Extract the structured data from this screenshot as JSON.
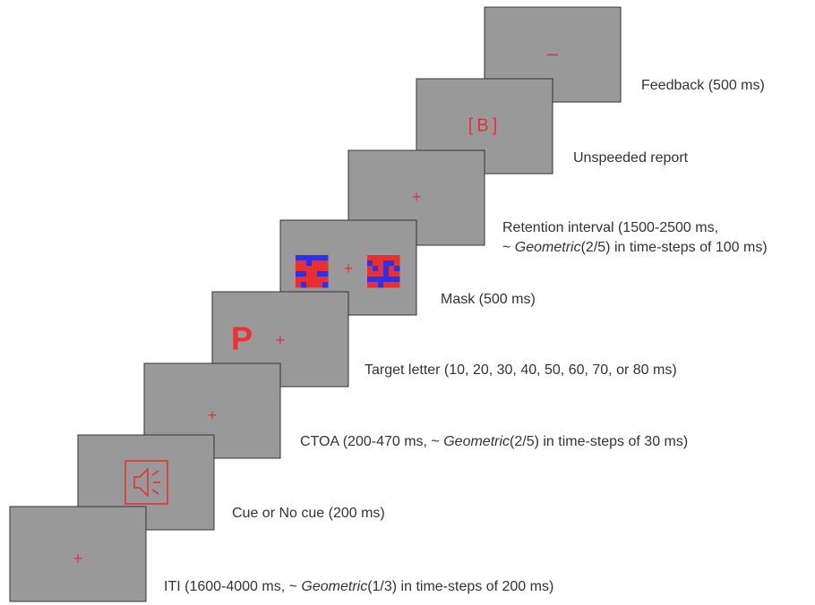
{
  "panels": [
    {
      "stimuli": [
        "–"
      ],
      "caption": [
        [
          {
            "text": "Feedback (500 ms)"
          }
        ]
      ]
    },
    {
      "stimuli": [
        "[B]"
      ],
      "caption": [
        [
          {
            "text": "Unspeeded report"
          }
        ]
      ]
    },
    {
      "stimuli": [
        "+"
      ],
      "caption": [
        [
          {
            "text": "Retention interval (1500-2500 ms,"
          }
        ],
        [
          {
            "text": "~ "
          },
          {
            "text": "Geometric",
            "italic": true
          },
          {
            "text": "(2/5) in time-steps of 100 ms)"
          }
        ]
      ]
    },
    {
      "stimuli": [
        "+"
      ],
      "caption": [
        [
          {
            "text": "Mask (500 ms)"
          }
        ]
      ]
    },
    {
      "stimuli": [
        "P",
        "+"
      ],
      "caption": [
        [
          {
            "text": "Target letter (10, 20, 30, 40, 50, 60, 70, or 80 ms)"
          }
        ]
      ]
    },
    {
      "stimuli": [
        "+"
      ],
      "caption": [
        [
          {
            "text": "CTOA (200-470 ms, ~ "
          },
          {
            "text": "Geometric",
            "italic": true
          },
          {
            "text": "(2/5) in time-steps of 30 ms)"
          }
        ]
      ]
    },
    {
      "stimuli": [],
      "caption": [
        [
          {
            "text": "Cue or No cue (200 ms)"
          }
        ]
      ]
    },
    {
      "stimuli": [
        "+"
      ],
      "caption": [
        [
          {
            "text": "ITI (1600-4000 ms, ~ "
          },
          {
            "text": "Geometric",
            "italic": true
          },
          {
            "text": "(1/3) in time-steps of 200 ms)"
          }
        ]
      ]
    }
  ]
}
